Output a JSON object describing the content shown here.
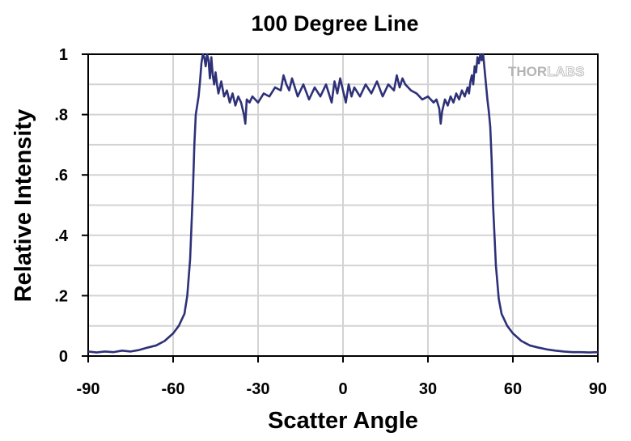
{
  "chart_data": {
    "type": "line",
    "title": "100 Degree Line",
    "xlabel": "Scatter Angle",
    "ylabel": "Relative Intensity",
    "xlim": [
      -90,
      90
    ],
    "ylim": [
      0,
      1
    ],
    "x_ticks": [
      -90,
      -60,
      -30,
      0,
      30,
      60,
      90
    ],
    "x_tick_labels": [
      "-90",
      "-60",
      "-30",
      "0",
      "30",
      "60",
      "90"
    ],
    "y_ticks": [
      0,
      0.2,
      0.4,
      0.6,
      0.8,
      1
    ],
    "y_tick_labels": [
      "0",
      ".2",
      ".4",
      ".6",
      ".8",
      "1"
    ],
    "y_minor_gridlines": [
      0.1,
      0.3,
      0.5,
      0.7,
      0.9
    ],
    "grid": true,
    "legend": "none",
    "series": [
      {
        "color": "#2e3178",
        "x": [
          -90,
          -87,
          -84,
          -81,
          -78,
          -75,
          -72,
          -69,
          -66,
          -63,
          -60,
          -58,
          -56,
          -55,
          -54,
          -53,
          -52.5,
          -52,
          -51.5,
          -51,
          -50.5,
          -50,
          -49.5,
          -49,
          -48.5,
          -48,
          -47.5,
          -47,
          -46.5,
          -46,
          -45.5,
          -45,
          -44.5,
          -44,
          -43,
          -42,
          -41,
          -40,
          -39,
          -38,
          -37,
          -36,
          -35,
          -34.5,
          -34,
          -33,
          -32,
          -30,
          -28,
          -26,
          -24,
          -22,
          -21,
          -20,
          -19,
          -18,
          -16,
          -14,
          -12,
          -10,
          -8,
          -6,
          -4,
          -3,
          -2,
          -1,
          0,
          1,
          2,
          3,
          4,
          6,
          8,
          10,
          12,
          14,
          16,
          18,
          19,
          20,
          21,
          22,
          24,
          26,
          28,
          30,
          32,
          33,
          34,
          34.5,
          35,
          36,
          37,
          38,
          39,
          40,
          41,
          42,
          43,
          44,
          44.5,
          45,
          45.5,
          46,
          46.5,
          47,
          47.5,
          48,
          48.5,
          49,
          49.5,
          50,
          50.5,
          51,
          51.5,
          52,
          52.5,
          53,
          54,
          55,
          56,
          58,
          60,
          63,
          66,
          69,
          72,
          75,
          78,
          81,
          84,
          87,
          90
        ],
        "y": [
          0.015,
          0.012,
          0.015,
          0.013,
          0.018,
          0.015,
          0.02,
          0.028,
          0.035,
          0.05,
          0.075,
          0.1,
          0.14,
          0.2,
          0.32,
          0.55,
          0.7,
          0.8,
          0.83,
          0.86,
          0.91,
          0.97,
          1.0,
          0.99,
          0.96,
          1.0,
          0.98,
          0.92,
          0.99,
          0.93,
          0.9,
          0.94,
          0.9,
          0.87,
          0.91,
          0.86,
          0.88,
          0.84,
          0.87,
          0.83,
          0.86,
          0.84,
          0.8,
          0.77,
          0.85,
          0.84,
          0.86,
          0.84,
          0.87,
          0.86,
          0.89,
          0.88,
          0.93,
          0.9,
          0.88,
          0.92,
          0.86,
          0.9,
          0.85,
          0.89,
          0.86,
          0.9,
          0.84,
          0.91,
          0.87,
          0.92,
          0.88,
          0.84,
          0.9,
          0.86,
          0.89,
          0.86,
          0.9,
          0.87,
          0.91,
          0.86,
          0.9,
          0.88,
          0.93,
          0.89,
          0.92,
          0.9,
          0.88,
          0.87,
          0.85,
          0.86,
          0.84,
          0.85,
          0.82,
          0.77,
          0.81,
          0.85,
          0.83,
          0.86,
          0.84,
          0.87,
          0.85,
          0.88,
          0.86,
          0.89,
          0.87,
          0.91,
          0.93,
          0.9,
          0.96,
          0.94,
          0.99,
          0.97,
          1.0,
          0.98,
          1.0,
          0.95,
          0.9,
          0.85,
          0.81,
          0.76,
          0.65,
          0.5,
          0.3,
          0.19,
          0.14,
          0.1,
          0.075,
          0.05,
          0.035,
          0.028,
          0.022,
          0.018,
          0.015,
          0.013,
          0.013,
          0.012,
          0.013
        ]
      }
    ]
  },
  "watermark": {
    "part1": "THOR",
    "part2": "LABS"
  }
}
